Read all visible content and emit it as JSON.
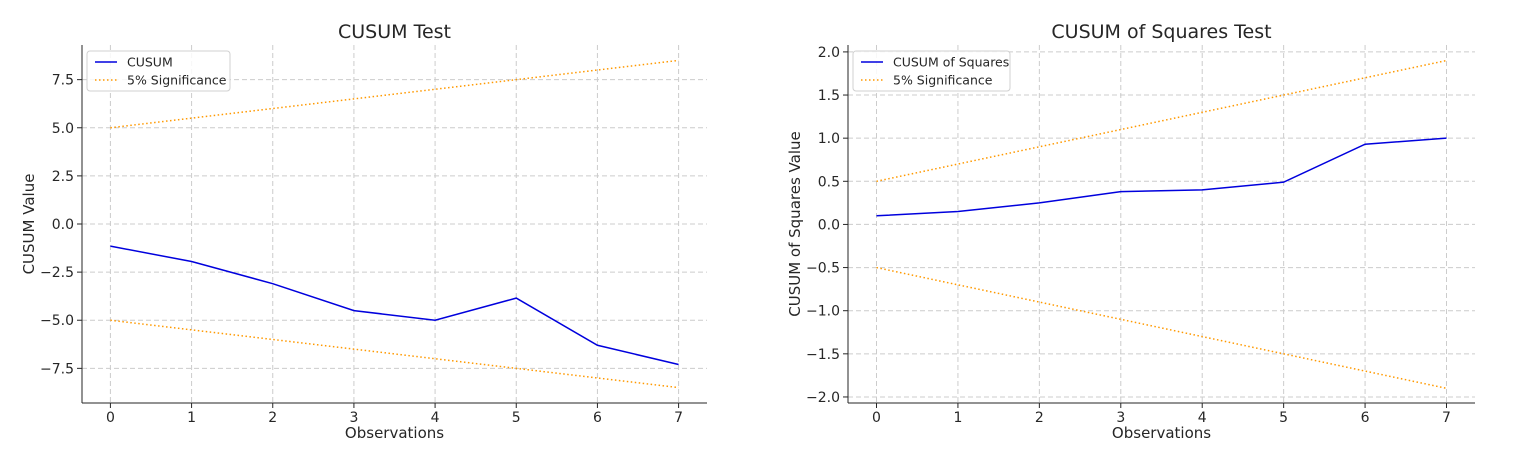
{
  "chart_data": [
    {
      "type": "line",
      "title": "CUSUM Test",
      "xlabel": "Observations",
      "ylabel": "CUSUM Value",
      "x": [
        0,
        1,
        2,
        3,
        4,
        5,
        6,
        7
      ],
      "xticks": [
        "0",
        "1",
        "2",
        "3",
        "4",
        "5",
        "6",
        "7"
      ],
      "yticks": [
        -7.5,
        -5.0,
        -2.5,
        0.0,
        2.5,
        5.0,
        7.5
      ],
      "ytick_labels": [
        "−7.5",
        "−5.0",
        "−2.5",
        "0.0",
        "2.5",
        "5.0",
        "7.5"
      ],
      "xlim": [
        -0.35,
        7.35
      ],
      "ylim": [
        -9.3,
        9.3
      ],
      "grid": true,
      "legend_position": "upper-left",
      "series": [
        {
          "name": "CUSUM",
          "color": "#0000dd",
          "style": "solid",
          "values": [
            -1.15,
            -1.95,
            -3.1,
            -4.5,
            -5.0,
            -3.85,
            -6.3,
            -7.3
          ]
        },
        {
          "name": "5% Significance",
          "color": "#ff9900",
          "style": "dotted",
          "values": [
            5.0,
            5.5,
            6.0,
            6.5,
            7.0,
            7.5,
            8.0,
            8.5
          ]
        },
        {
          "name": "",
          "color": "#ff9900",
          "style": "dotted",
          "values": [
            -5.0,
            -5.5,
            -6.0,
            -6.5,
            -7.0,
            -7.5,
            -8.0,
            -8.5
          ]
        }
      ]
    },
    {
      "type": "line",
      "title": "CUSUM of Squares Test",
      "xlabel": "Observations",
      "ylabel": "CUSUM of Squares Value",
      "x": [
        0,
        1,
        2,
        3,
        4,
        5,
        6,
        7
      ],
      "xticks": [
        "0",
        "1",
        "2",
        "3",
        "4",
        "5",
        "6",
        "7"
      ],
      "yticks": [
        -2.0,
        -1.5,
        -1.0,
        -0.5,
        0.0,
        0.5,
        1.0,
        1.5,
        2.0
      ],
      "ytick_labels": [
        "−2.0",
        "−1.5",
        "−1.0",
        "−0.5",
        "0.0",
        "0.5",
        "1.0",
        "1.5",
        "2.0"
      ],
      "xlim": [
        -0.35,
        7.35
      ],
      "ylim": [
        -2.07,
        2.08
      ],
      "grid": true,
      "legend_position": "upper-left",
      "series": [
        {
          "name": "CUSUM of Squares",
          "color": "#0000dd",
          "style": "solid",
          "values": [
            0.1,
            0.15,
            0.25,
            0.38,
            0.4,
            0.49,
            0.93,
            1.0
          ]
        },
        {
          "name": "5% Significance",
          "color": "#ff9900",
          "style": "dotted",
          "values": [
            0.5,
            0.7,
            0.9,
            1.1,
            1.3,
            1.5,
            1.7,
            1.9
          ]
        },
        {
          "name": "",
          "color": "#ff9900",
          "style": "dotted",
          "values": [
            -0.5,
            -0.7,
            -0.9,
            -1.1,
            -1.3,
            -1.5,
            -1.7,
            -1.9
          ]
        }
      ]
    }
  ]
}
